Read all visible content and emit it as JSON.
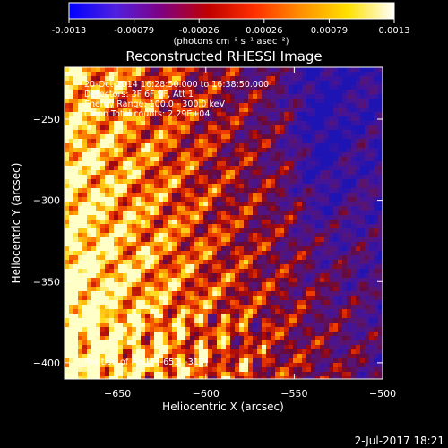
{
  "date_stamp": "2-Jul-2017 18:21",
  "colorbar": {
    "unit_label": "(photons cm⁻² s⁻¹ asec⁻²)",
    "ticks": [
      "-0.0013",
      "-0.00079",
      "-0.00026",
      "0.00026",
      "0.00079",
      "0.0013"
    ],
    "range": [
      -0.0013,
      0.0013
    ],
    "colors": [
      "#0000ff",
      "#5020e0",
      "#800080",
      "#c00000",
      "#ff3000",
      "#ff9000",
      "#ffe000",
      "#ffffff"
    ]
  },
  "chart_data": {
    "type": "heatmap",
    "title": "Reconstructed RHESSI Image",
    "xlabel": "Heliocentric X (arcsec)",
    "ylabel": "Heliocentric Y (arcsec)",
    "xlim": [
      -680,
      -500
    ],
    "ylim": [
      -410,
      -218
    ],
    "xticks": [
      -650,
      -600,
      -550,
      -500
    ],
    "yticks": [
      -400,
      -350,
      -300,
      -250
    ],
    "xtick_labels": [
      "−650",
      "−600",
      "−550",
      "−500"
    ],
    "ytick_labels": [
      "−400",
      "−350",
      "−300",
      "−250"
    ],
    "annotations": [
      "20-Oct-2014 16:28:50.000 to 16:38:50.000",
      "Detectors: 3F 6F 9F, Att 1",
      "Energy Range: 100.0 - 300.0 keV",
      "Clean    Total counts: 2.29E+04"
    ],
    "peak_label": "Position of Peak: [-651, -317]",
    "peak": {
      "x": -651,
      "y": -317
    },
    "description_of_intensity": "Bright (yellow/white) emission concentrated in lower-left, fading to purple/blue toward the upper-right."
  }
}
